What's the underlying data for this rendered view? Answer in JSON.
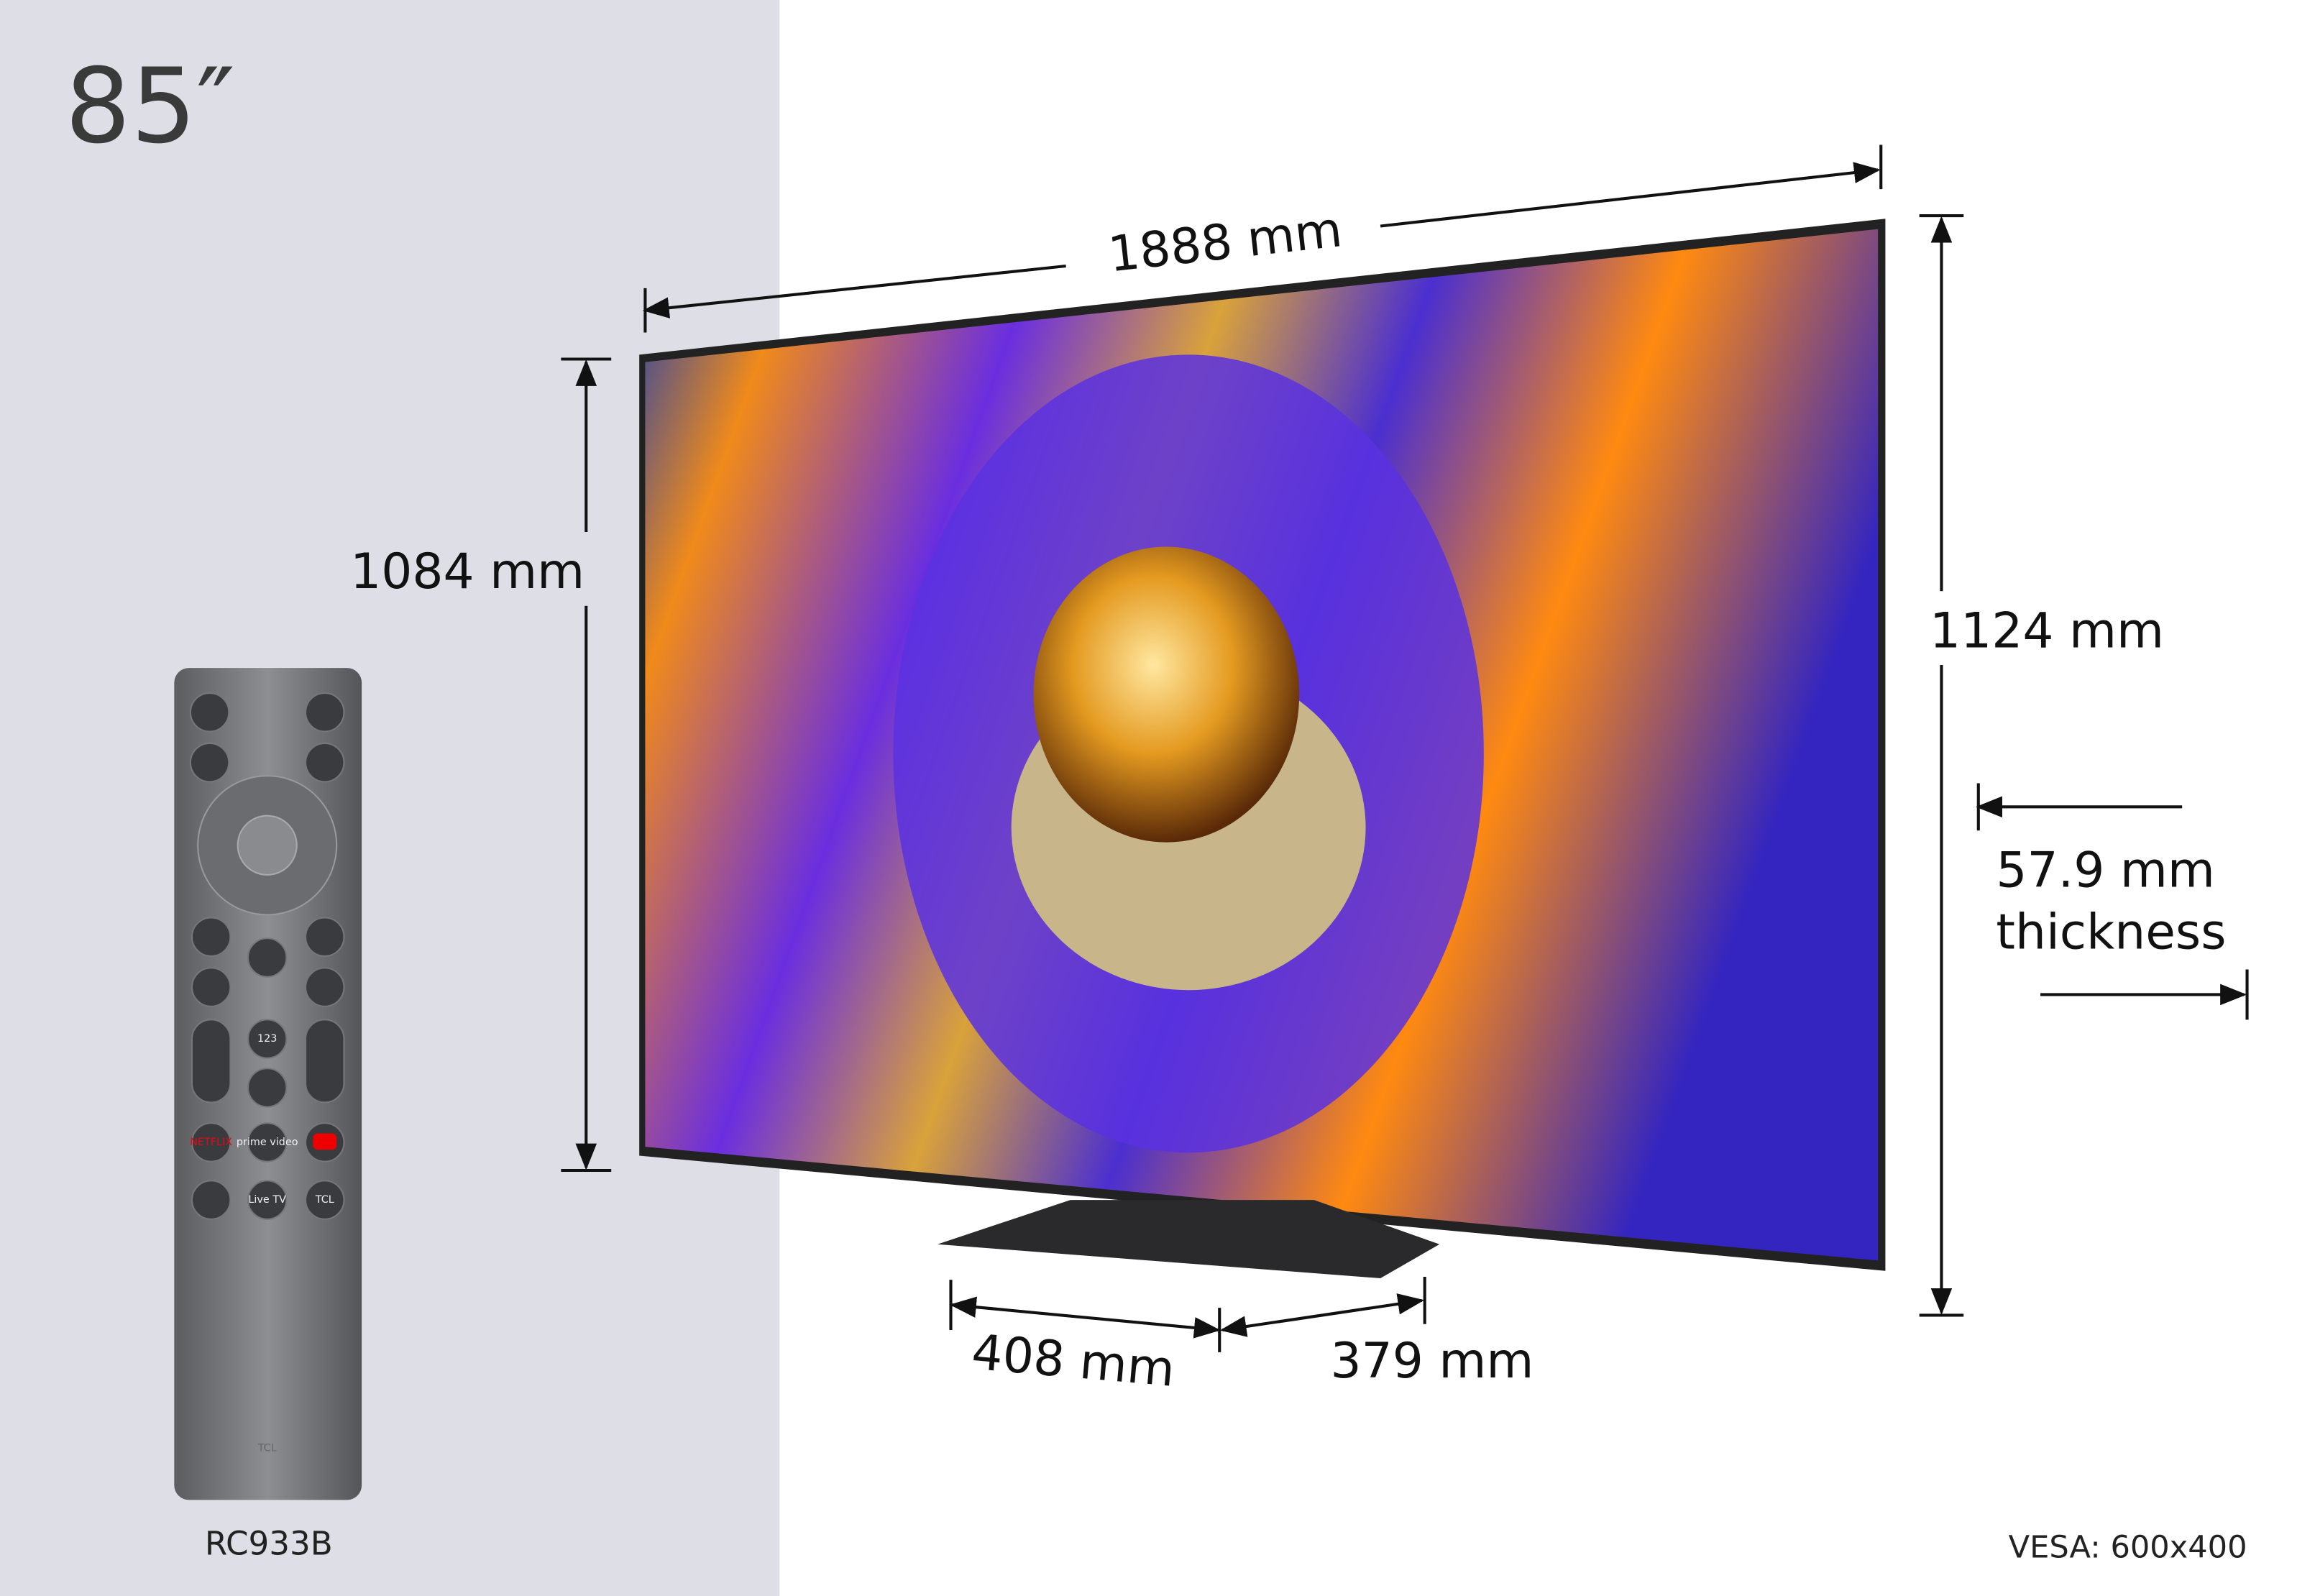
{
  "size_label": "85″",
  "dimensions": {
    "width": "1888 mm",
    "height": "1084 mm",
    "total_height": "1124 mm",
    "thickness": "57.9 mm",
    "thickness_label": "thickness",
    "stand_depth": "408 mm",
    "stand_width": "379 mm"
  },
  "remote": {
    "model": "RC933B",
    "buttons": {
      "numbers": "123",
      "prime": "prime video",
      "live": "Live TV",
      "channel": "TCL",
      "netflix": "NETFLIX",
      "brand": "TCL"
    }
  },
  "vesa": "VESA: 600x400"
}
